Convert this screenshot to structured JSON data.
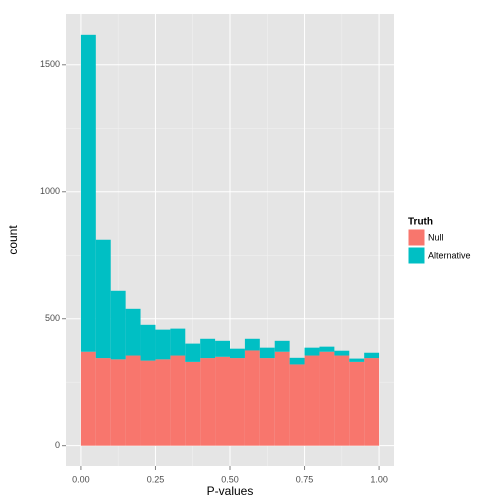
{
  "chart_data": {
    "type": "histogram",
    "xlabel": "P-values",
    "ylabel": "count",
    "bins": [
      0,
      0.05,
      0.1,
      0.15,
      0.2,
      0.25,
      0.3,
      0.35,
      0.4,
      0.45,
      0.5,
      0.55,
      0.6,
      0.65,
      0.7,
      0.75,
      0.8,
      0.85,
      0.9,
      0.95,
      1
    ],
    "series": [
      {
        "name": "Null",
        "color": "#F8766D",
        "values": [
          370,
          345,
          340,
          355,
          335,
          340,
          355,
          330,
          345,
          350,
          345,
          375,
          345,
          370,
          320,
          355,
          370,
          355,
          330,
          345
        ]
      },
      {
        "name": "Alternative",
        "color": "#00BFC4",
        "values": [
          1248,
          466,
          270,
          184,
          141,
          117,
          106,
          72,
          76,
          63,
          37,
          46,
          41,
          43,
          26,
          31,
          20,
          19,
          13,
          21
        ]
      }
    ],
    "stacked": true,
    "legend_title": "Truth",
    "legend": "right",
    "xlim": [
      -0.05,
      1.05
    ],
    "xticks": [
      {
        "value": 0,
        "label": "0.00"
      },
      {
        "value": 0.25,
        "label": "0.25"
      },
      {
        "value": 0.5,
        "label": "0.50"
      },
      {
        "value": 0.75,
        "label": "0.75"
      },
      {
        "value": 1,
        "label": "1.00"
      }
    ],
    "ylim": [
      -80,
      1700
    ],
    "yticks": [
      0,
      500,
      1000,
      1500
    ],
    "grid": true
  }
}
